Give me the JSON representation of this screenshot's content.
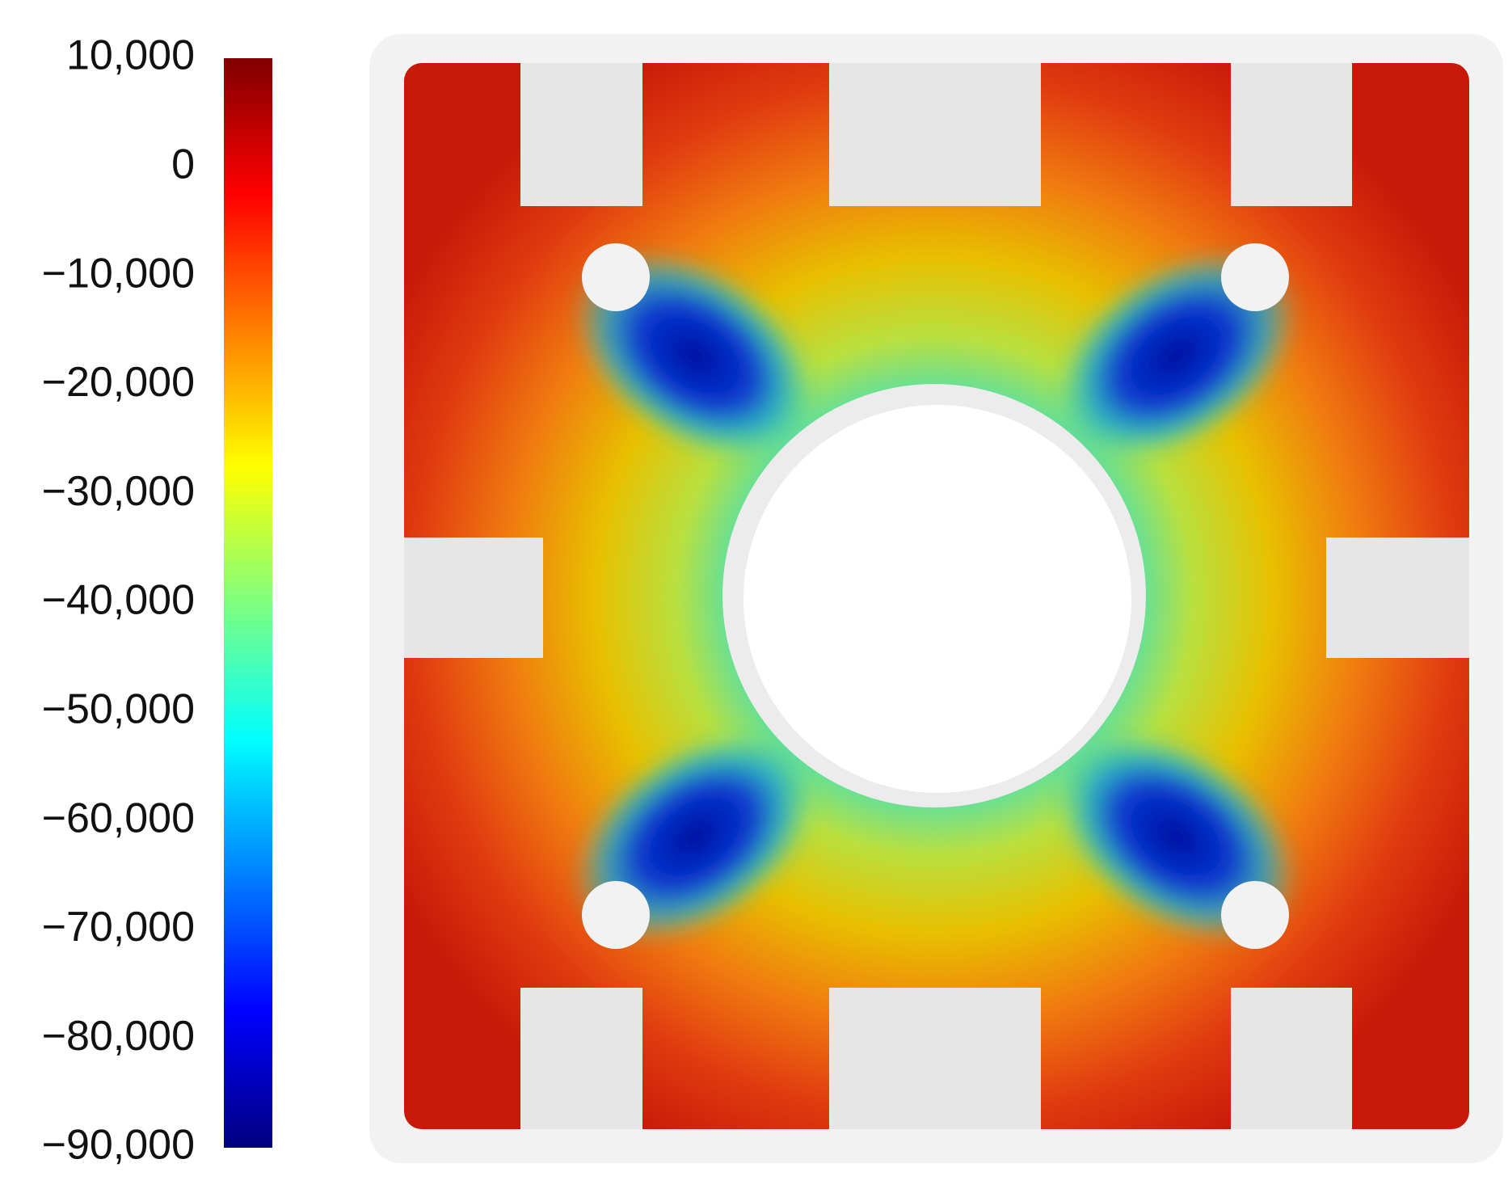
{
  "chart_data": {
    "type": "colorbar",
    "ylim": [
      -90000,
      10000
    ],
    "yticks": [
      {
        "value": 10000,
        "label": "10,000"
      },
      0,
      {
        "value": -10000,
        "label": "−10,000"
      },
      {
        "value": -20000,
        "label": "−20,000"
      },
      {
        "value": -30000,
        "label": "−30,000"
      },
      {
        "value": -40000,
        "label": "−40,000"
      },
      {
        "value": -50000,
        "label": "−50,000"
      },
      {
        "value": -60000,
        "label": "−60,000"
      },
      {
        "value": -70000,
        "label": "−70,000"
      },
      {
        "value": -80000,
        "label": "−80,000"
      },
      {
        "value": -90000,
        "label": "−90,000"
      }
    ],
    "colormap": [
      "#00007f",
      "#0000ff",
      "#007fff",
      "#00ffff",
      "#7fff7f",
      "#ffff00",
      "#ff7f00",
      "#ff0000",
      "#7f0000"
    ]
  }
}
